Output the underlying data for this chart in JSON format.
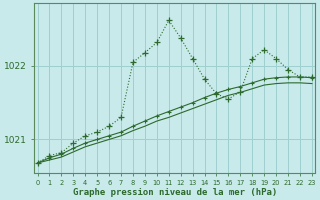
{
  "xlabel": "Graphe pression niveau de la mer (hPa)",
  "background_color": "#c8eaea",
  "grid_color": "#9fcfcf",
  "line_color": "#2d6a2d",
  "yticks": [
    1021,
    1022
  ],
  "xticks": [
    0,
    1,
    2,
    3,
    4,
    5,
    6,
    7,
    8,
    9,
    10,
    11,
    12,
    13,
    14,
    15,
    16,
    17,
    18,
    19,
    20,
    21,
    22,
    23
  ],
  "ylim": [
    1020.55,
    1022.85
  ],
  "xlim": [
    -0.3,
    23.3
  ],
  "line1_y": [
    1020.68,
    1020.78,
    1020.82,
    1020.95,
    1021.05,
    1021.1,
    1021.18,
    1021.3,
    1022.05,
    1022.18,
    1022.32,
    1022.62,
    1022.38,
    1022.1,
    1021.82,
    1021.62,
    1021.55,
    1021.65,
    1022.1,
    1022.22,
    1022.1,
    1021.95,
    1021.85,
    1021.85
  ],
  "line2_y": [
    1020.68,
    1020.75,
    1020.8,
    1020.88,
    1020.95,
    1021.0,
    1021.05,
    1021.1,
    1021.18,
    1021.25,
    1021.32,
    1021.38,
    1021.44,
    1021.5,
    1021.57,
    1021.63,
    1021.68,
    1021.72,
    1021.77,
    1021.82,
    1021.84,
    1021.85,
    1021.85,
    1021.84
  ],
  "line3_y": [
    1020.68,
    1020.72,
    1020.76,
    1020.83,
    1020.9,
    1020.95,
    1021.0,
    1021.05,
    1021.12,
    1021.18,
    1021.25,
    1021.3,
    1021.36,
    1021.42,
    1021.48,
    1021.54,
    1021.6,
    1021.64,
    1021.69,
    1021.74,
    1021.76,
    1021.77,
    1021.77,
    1021.76
  ]
}
